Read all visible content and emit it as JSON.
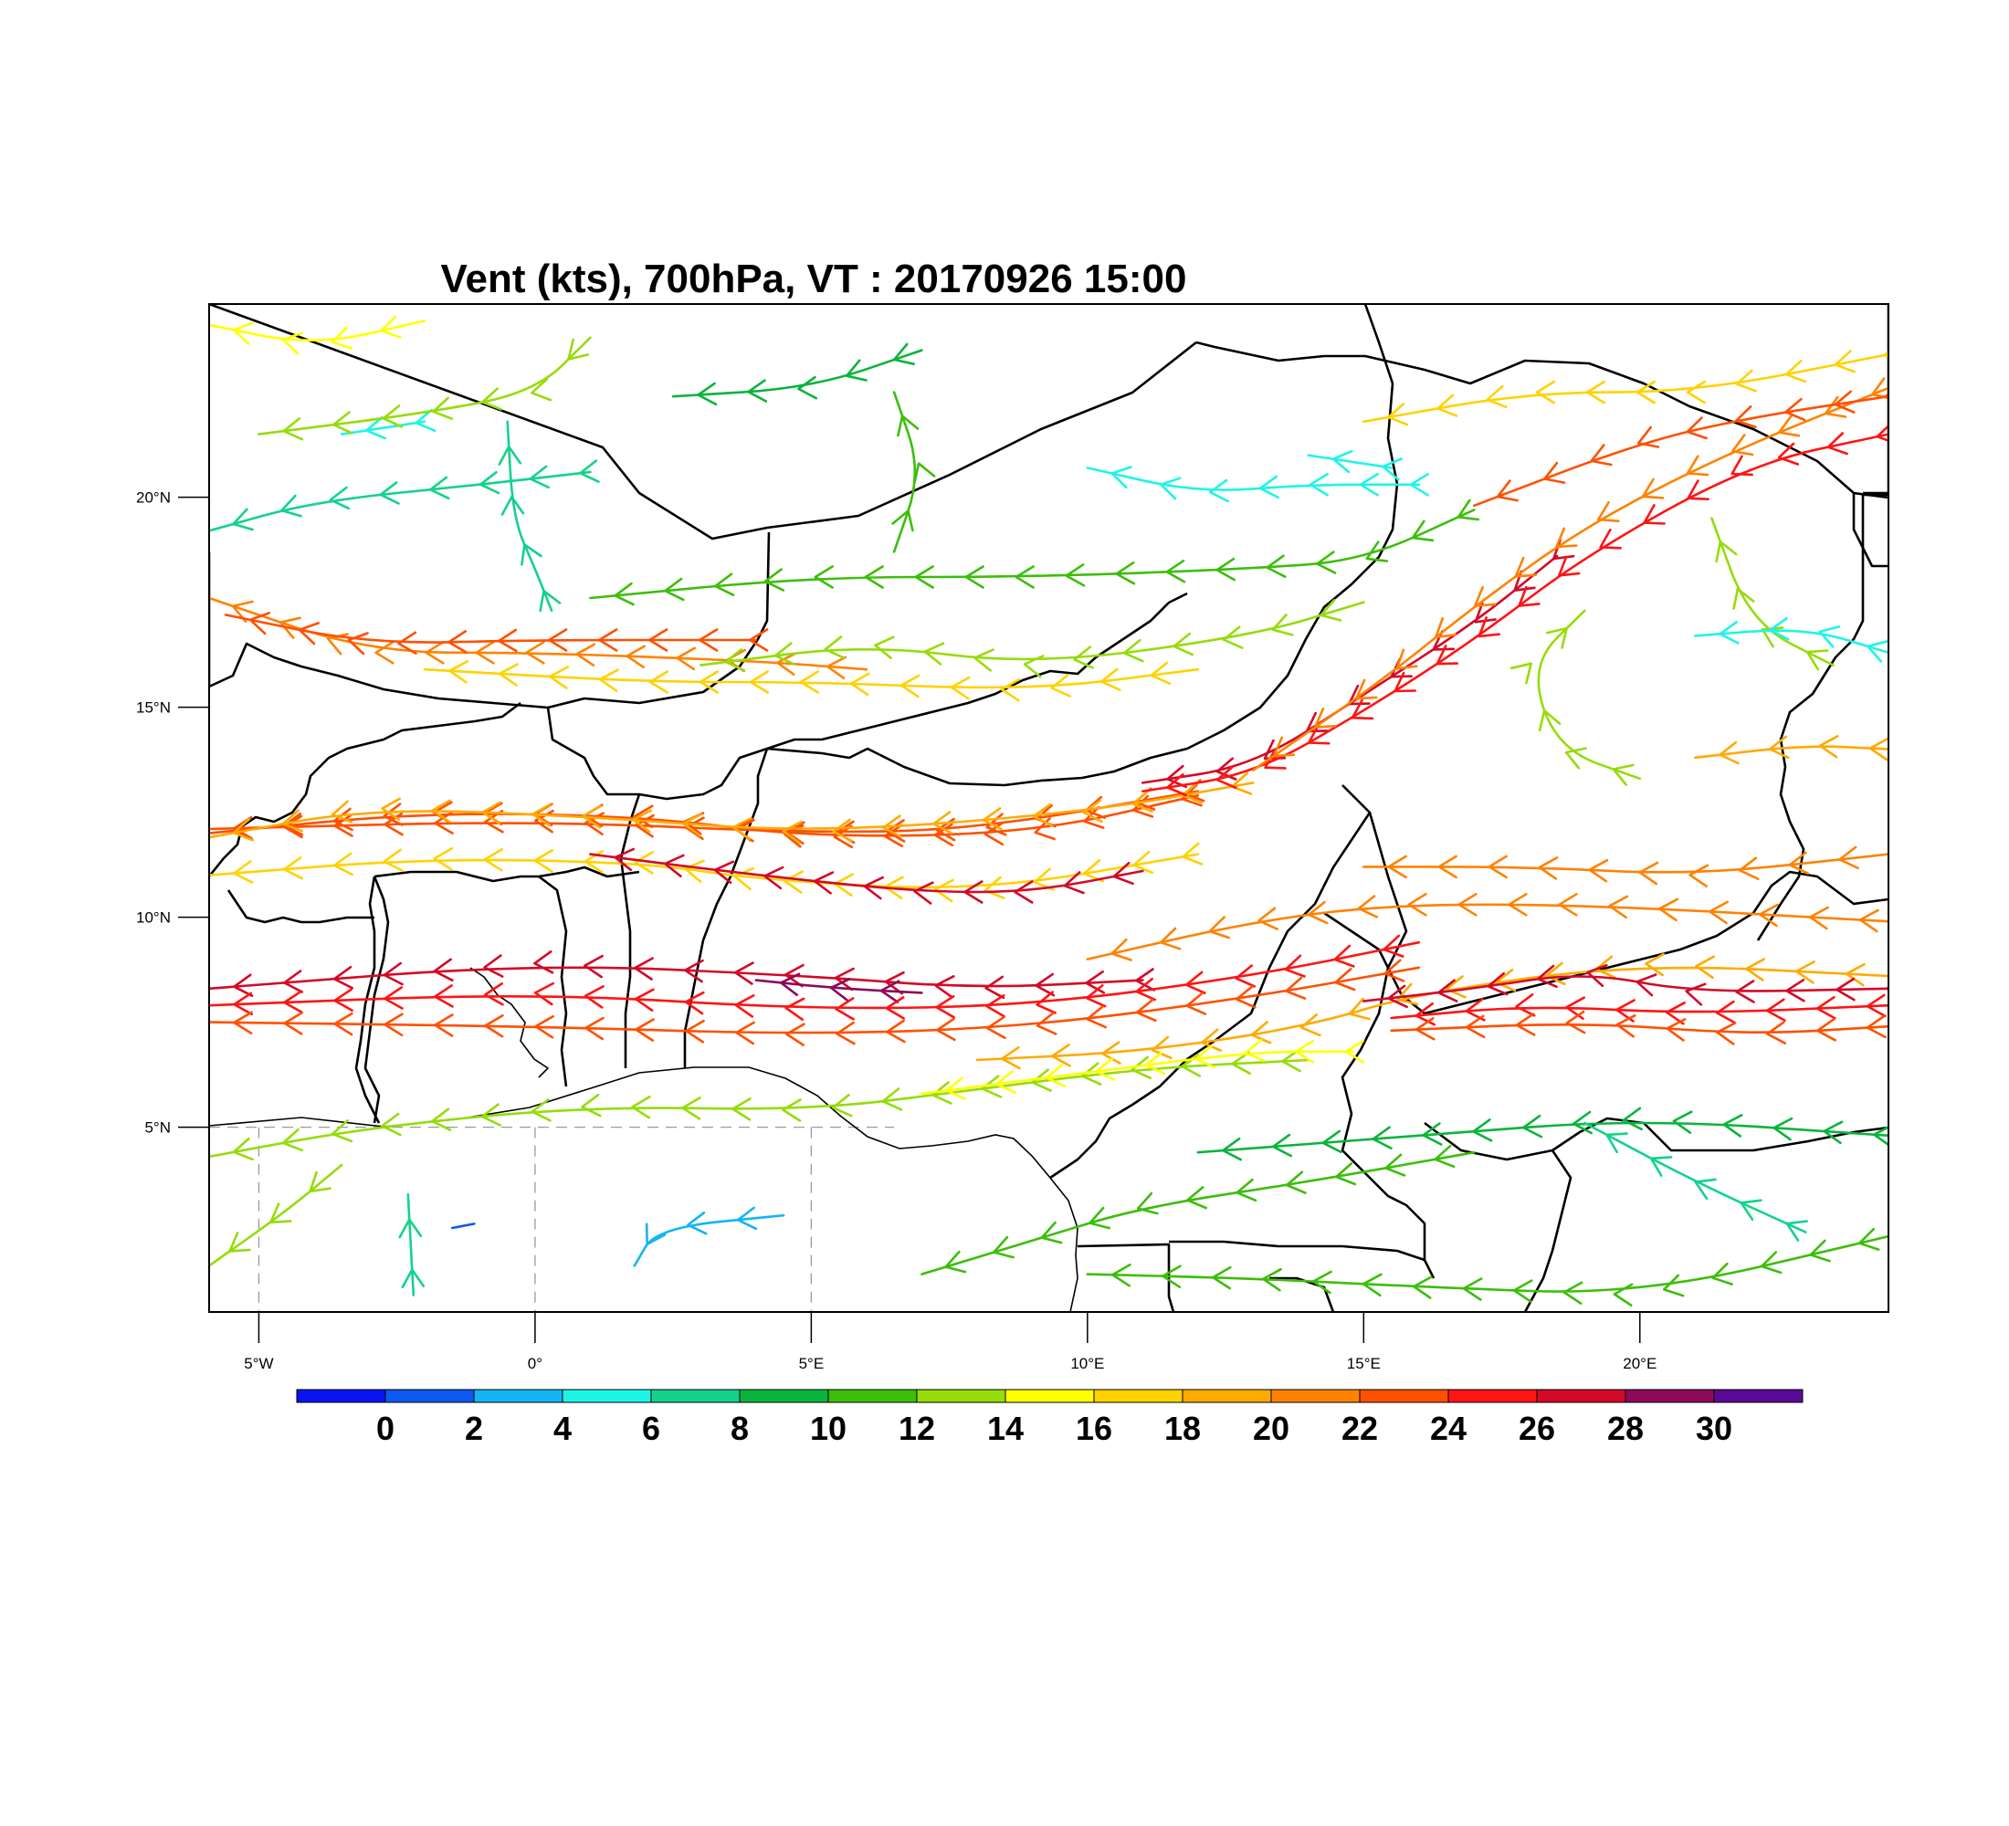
{
  "title": "Vent (kts), 700hPa, VT : 20170926  15:00",
  "map": {
    "lon_range": [
      -5.9,
      24.5
    ],
    "lat_range": [
      0.6,
      24.6
    ],
    "lon_ticks": [
      {
        "lon": -5,
        "label": "5°W"
      },
      {
        "lon": 0,
        "label": "0°"
      },
      {
        "lon": 5,
        "label": "5°E"
      },
      {
        "lon": 10,
        "label": "10°E"
      },
      {
        "lon": 15,
        "label": "15°E"
      },
      {
        "lon": 20,
        "label": "20°E"
      }
    ],
    "lat_ticks": [
      {
        "lat": 5,
        "label": "5°N"
      },
      {
        "lat": 10,
        "label": "10°N"
      },
      {
        "lat": 15,
        "label": "15°N"
      },
      {
        "lat": 20,
        "label": "20°N"
      }
    ],
    "gridline_lat": 5,
    "gridline_lons": [
      -5,
      0,
      5
    ]
  },
  "colorbar": {
    "labels": [
      "0",
      "2",
      "4",
      "6",
      "8",
      "10",
      "12",
      "14",
      "16",
      "18",
      "20",
      "22",
      "24",
      "26",
      "28",
      "30"
    ],
    "colors": [
      "#0a14f0",
      "#0c5af0",
      "#14b4f5",
      "#1ef5e6",
      "#14d28c",
      "#0ab43c",
      "#3cbe0a",
      "#96dc0a",
      "#ffff00",
      "#ffd200",
      "#ffaa00",
      "#ff8200",
      "#ff5000",
      "#ff1414",
      "#d20a28",
      "#8c0a5a",
      "#5a0a96"
    ]
  },
  "chart_data": {
    "type": "streamline",
    "variable": "Vent (kts), 700hPa",
    "valid_time": "20170926  15:00",
    "speed_units": "kts",
    "streamlines": [
      {
        "speed": 23,
        "dir": "W",
        "points": [
          [
            -5.9,
            12.1
          ],
          [
            0,
            12.3
          ],
          [
            5,
            12.0
          ],
          [
            8,
            12.1
          ],
          [
            12,
            13.0
          ]
        ]
      },
      {
        "speed": 22,
        "dir": "W",
        "points": [
          [
            -5.9,
            12.0
          ],
          [
            -2,
            12.5
          ],
          [
            2,
            12.4
          ],
          [
            5,
            11.9
          ],
          [
            9,
            12.0
          ],
          [
            12,
            12.9
          ]
        ]
      },
      {
        "speed": 18,
        "dir": "W",
        "points": [
          [
            -5.9,
            11.9
          ],
          [
            -3,
            12.6
          ],
          [
            1,
            12.4
          ],
          [
            5,
            12.0
          ],
          [
            10,
            12.5
          ],
          [
            13,
            13.2
          ]
        ]
      },
      {
        "speed": 16,
        "dir": "W",
        "points": [
          [
            -5.9,
            11.0
          ],
          [
            -2,
            11.4
          ],
          [
            2,
            11.3
          ],
          [
            4,
            10.9
          ],
          [
            8,
            10.6
          ],
          [
            12,
            11.5
          ]
        ]
      },
      {
        "speed": 26,
        "dir": "W",
        "points": [
          [
            1,
            11.5
          ],
          [
            4,
            11.0
          ],
          [
            7,
            10.6
          ],
          [
            9,
            10.6
          ],
          [
            11,
            11.1
          ]
        ]
      },
      {
        "speed": 27,
        "dir": "W",
        "points": [
          [
            11,
            13.2
          ],
          [
            13,
            13.6
          ],
          [
            15,
            15.3
          ],
          [
            17,
            17.0
          ],
          [
            18.5,
            18.6
          ]
        ]
      },
      {
        "speed": 24,
        "dir": "W",
        "points": [
          [
            11,
            13.0
          ],
          [
            13,
            13.4
          ],
          [
            15,
            14.9
          ],
          [
            17,
            16.6
          ],
          [
            19,
            18.6
          ],
          [
            22,
            20.8
          ],
          [
            24.5,
            21.5
          ]
        ]
      },
      {
        "speed": 20,
        "dir": "W",
        "points": [
          [
            13,
            13.5
          ],
          [
            15.3,
            15.6
          ],
          [
            17,
            17.4
          ],
          [
            19,
            19.3
          ],
          [
            21.5,
            21.0
          ],
          [
            24.5,
            22.6
          ]
        ]
      },
      {
        "speed": 22,
        "dir": "W",
        "points": [
          [
            17,
            19.8
          ],
          [
            20,
            21.3
          ],
          [
            22,
            21.9
          ],
          [
            24.5,
            22.4
          ]
        ]
      },
      {
        "speed": 17,
        "dir": "W",
        "points": [
          [
            15,
            21.8
          ],
          [
            18,
            22.5
          ],
          [
            21,
            22.5
          ],
          [
            24.5,
            23.4
          ]
        ]
      },
      {
        "speed": 26,
        "dir": "W",
        "points": [
          [
            -5.9,
            8.3
          ],
          [
            0,
            8.9
          ],
          [
            5,
            8.6
          ],
          [
            8,
            8.3
          ],
          [
            11,
            8.5
          ]
        ]
      },
      {
        "speed": 29,
        "dir": "W",
        "points": [
          [
            4,
            8.5
          ],
          [
            5.5,
            8.3
          ],
          [
            7,
            8.2
          ]
        ]
      },
      {
        "speed": 24,
        "dir": "W",
        "points": [
          [
            -5.9,
            7.9
          ],
          [
            0,
            8.2
          ],
          [
            5,
            7.8
          ],
          [
            9,
            7.9
          ],
          [
            13,
            8.6
          ],
          [
            16,
            9.4
          ]
        ]
      },
      {
        "speed": 22,
        "dir": "W",
        "points": [
          [
            -5.9,
            7.5
          ],
          [
            0,
            7.4
          ],
          [
            5,
            7.2
          ],
          [
            9,
            7.4
          ],
          [
            13,
            8.1
          ],
          [
            16,
            8.8
          ]
        ]
      },
      {
        "speed": 19,
        "dir": "W",
        "points": [
          [
            8,
            6.6
          ],
          [
            11,
            6.8
          ],
          [
            14,
            7.4
          ],
          [
            16,
            8.2
          ],
          [
            20,
            8.9
          ],
          [
            24.5,
            8.6
          ]
        ]
      },
      {
        "speed": 21,
        "dir": "W",
        "points": [
          [
            10,
            9.0
          ],
          [
            13,
            9.9
          ],
          [
            15.5,
            10.3
          ],
          [
            19,
            10.3
          ],
          [
            24.5,
            9.9
          ]
        ]
      },
      {
        "speed": 26,
        "dir": "W",
        "points": [
          [
            15,
            8.0
          ],
          [
            17,
            8.3
          ],
          [
            19,
            8.7
          ],
          [
            21,
            8.2
          ],
          [
            24.5,
            8.3
          ]
        ]
      },
      {
        "speed": 24,
        "dir": "W",
        "points": [
          [
            15.5,
            7.6
          ],
          [
            18,
            7.9
          ],
          [
            21,
            7.7
          ],
          [
            24.5,
            7.9
          ]
        ]
      },
      {
        "speed": 22,
        "dir": "W",
        "points": [
          [
            15.5,
            7.3
          ],
          [
            19,
            7.5
          ],
          [
            22,
            7.2
          ],
          [
            24.5,
            7.4
          ]
        ]
      },
      {
        "speed": 20,
        "dir": "W",
        "points": [
          [
            -5.9,
            17.6
          ],
          [
            -3,
            16.3
          ],
          [
            0,
            16.3
          ],
          [
            4,
            16.1
          ],
          [
            6,
            15.9
          ]
        ]
      },
      {
        "speed": 22,
        "dir": "W",
        "points": [
          [
            -5.6,
            17.2
          ],
          [
            -3,
            16.5
          ],
          [
            0,
            16.6
          ],
          [
            4,
            16.6
          ]
        ]
      },
      {
        "speed": 17,
        "dir": "W",
        "points": [
          [
            -2,
            15.9
          ],
          [
            2,
            15.6
          ],
          [
            5,
            15.6
          ],
          [
            9,
            15.4
          ],
          [
            12,
            15.9
          ]
        ]
      },
      {
        "speed": 13,
        "dir": "W",
        "points": [
          [
            3,
            16.0
          ],
          [
            6,
            16.5
          ],
          [
            9,
            16.0
          ],
          [
            13,
            16.7
          ],
          [
            15,
            17.5
          ]
        ]
      },
      {
        "speed": 10,
        "dir": "W",
        "points": [
          [
            1,
            17.6
          ],
          [
            5,
            18.1
          ],
          [
            9,
            18.1
          ],
          [
            13,
            18.3
          ],
          [
            15,
            18.5
          ],
          [
            17,
            19.7
          ]
        ]
      },
      {
        "speed": 12,
        "dir": "W",
        "points": [
          [
            -5.9,
            4.3
          ],
          [
            -3,
            5.0
          ],
          [
            1,
            5.5
          ],
          [
            5,
            5.4
          ],
          [
            8,
            5.9
          ],
          [
            11,
            6.4
          ],
          [
            14,
            6.6
          ]
        ]
      },
      {
        "speed": 15,
        "dir": "W",
        "points": [
          [
            7,
            5.8
          ],
          [
            10,
            6.3
          ],
          [
            13,
            6.8
          ],
          [
            14.8,
            6.8
          ]
        ]
      },
      {
        "speed": 9,
        "dir": "W",
        "points": [
          [
            12,
            4.4
          ],
          [
            16,
            4.8
          ],
          [
            20,
            5.2
          ],
          [
            24.5,
            4.8
          ]
        ]
      },
      {
        "speed": 7,
        "dir": "SW",
        "points": [
          [
            19,
            5.1
          ],
          [
            21,
            3.7
          ],
          [
            23,
            2.5
          ]
        ]
      },
      {
        "speed": 6,
        "dir": "W",
        "points": [
          [
            -5.9,
            19.2
          ],
          [
            -4,
            19.9
          ],
          [
            -1,
            20.3
          ],
          [
            1,
            20.6
          ]
        ]
      },
      {
        "speed": 5,
        "dir": "W",
        "points": [
          [
            10,
            20.7
          ],
          [
            12,
            20.1
          ],
          [
            14,
            20.3
          ],
          [
            16,
            20.3
          ]
        ]
      },
      {
        "speed": 4,
        "dir": "W",
        "points": [
          [
            14,
            21.0
          ],
          [
            15.5,
            20.7
          ]
        ]
      },
      {
        "speed": 4,
        "dir": "W",
        "points": [
          [
            -3.5,
            21.5
          ],
          [
            -2,
            21.8
          ]
        ]
      },
      {
        "speed": 3,
        "dir": "W",
        "points": [
          [
            1.8,
            1.7
          ],
          [
            2.2,
            2.6
          ],
          [
            4.5,
            2.9
          ]
        ]
      },
      {
        "speed": 6,
        "dir": "S",
        "points": [
          [
            -2.3,
            3.4
          ],
          [
            -2.2,
            1.0
          ]
        ]
      },
      {
        "speed": 1,
        "dir": "NE",
        "points": [
          [
            -1.5,
            2.6
          ],
          [
            -1.1,
            2.7
          ]
        ]
      },
      {
        "speed": 6,
        "dir": "S",
        "points": [
          [
            -0.5,
            21.8
          ],
          [
            -0.4,
            19.5
          ],
          [
            0,
            18.3
          ],
          [
            0.3,
            17.3
          ]
        ]
      },
      {
        "speed": 11,
        "dir": "S",
        "points": [
          [
            6.5,
            22.5
          ],
          [
            7,
            20.6
          ],
          [
            6.5,
            18.7
          ]
        ]
      },
      {
        "speed": 12,
        "dir": "S",
        "points": [
          [
            19,
            17.3
          ],
          [
            18,
            16.0
          ],
          [
            18.5,
            14.0
          ],
          [
            20,
            13.3
          ]
        ]
      },
      {
        "speed": 13,
        "dir": "S",
        "points": [
          [
            21.3,
            19.5
          ],
          [
            22,
            17.0
          ],
          [
            23.5,
            16.0
          ]
        ]
      },
      {
        "speed": 5,
        "dir": "W",
        "points": [
          [
            21,
            16.7
          ],
          [
            23,
            16.9
          ],
          [
            24.5,
            16.3
          ]
        ]
      },
      {
        "speed": 18,
        "dir": "W",
        "points": [
          [
            21,
            13.8
          ],
          [
            23,
            14.1
          ],
          [
            24.5,
            14.0
          ]
        ]
      },
      {
        "speed": 20,
        "dir": "W",
        "points": [
          [
            15,
            11.2
          ],
          [
            18,
            11.2
          ],
          [
            21,
            11.0
          ],
          [
            24.5,
            11.5
          ]
        ]
      },
      {
        "speed": 12,
        "dir": "S",
        "points": [
          [
            -5.9,
            1.7
          ],
          [
            -4.5,
            3.0
          ],
          [
            -3.5,
            4.1
          ]
        ]
      },
      {
        "speed": 11,
        "dir": "W",
        "points": [
          [
            7,
            1.5
          ],
          [
            9,
            2.3
          ],
          [
            11,
            3.1
          ],
          [
            14,
            3.7
          ],
          [
            17,
            4.4
          ]
        ]
      },
      {
        "speed": 10,
        "dir": "W",
        "points": [
          [
            10,
            1.5
          ],
          [
            13,
            1.4
          ],
          [
            16,
            1.2
          ],
          [
            20,
            1.0
          ],
          [
            24.5,
            2.4
          ]
        ]
      },
      {
        "speed": 9,
        "dir": "W",
        "points": [
          [
            2.5,
            22.4
          ],
          [
            5,
            22.6
          ],
          [
            7,
            23.5
          ]
        ]
      },
      {
        "speed": 15,
        "dir": "W",
        "points": [
          [
            -5.9,
            24.1
          ],
          [
            -4,
            23.6
          ],
          [
            -2,
            24.2
          ]
        ]
      },
      {
        "speed": 13,
        "dir": "W",
        "points": [
          [
            -5,
            21.5
          ],
          [
            -2,
            22.0
          ],
          [
            0,
            22.5
          ],
          [
            1,
            23.8
          ]
        ]
      }
    ]
  }
}
